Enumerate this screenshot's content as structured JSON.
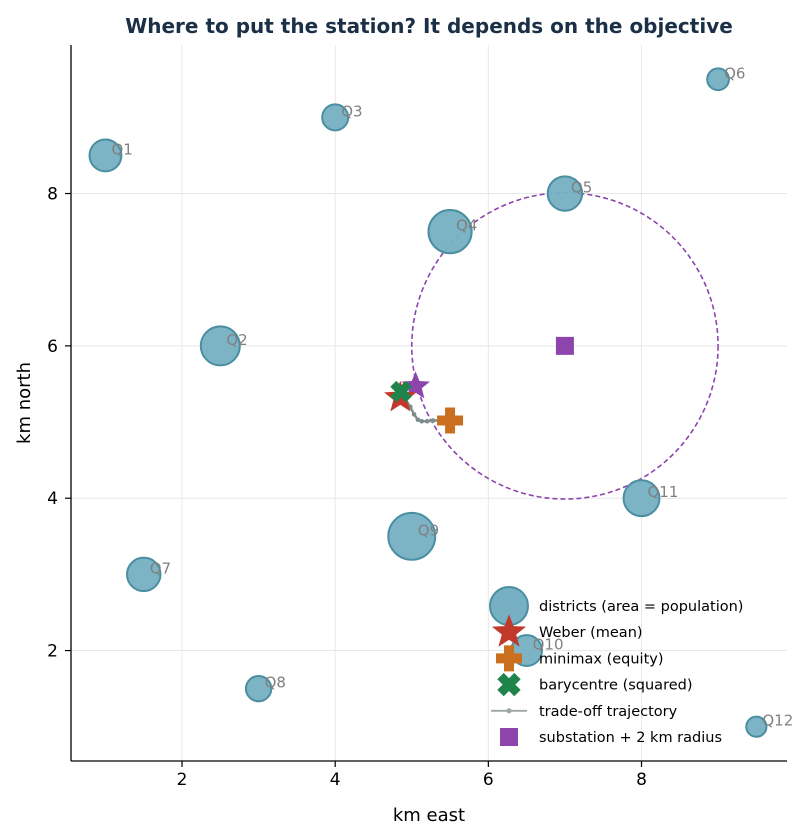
{
  "chart_data": {
    "type": "scatter",
    "title": "Where to put the station? It depends on the objective",
    "xlabel": "km east",
    "ylabel": "km north",
    "xlim": [
      0.55,
      9.9
    ],
    "ylim": [
      0.55,
      9.95
    ],
    "xticks": [
      2,
      4,
      6,
      8
    ],
    "yticks": [
      2,
      4,
      6,
      8
    ],
    "grid": true,
    "legend_position": "lower-right",
    "colors": {
      "district": "#76b0c2",
      "district_edge": "#4a8ea2",
      "weber": "#c0392b",
      "minimax": "#ca6f1e",
      "barycentre": "#1e8449",
      "trajectory": "#7f8c8d",
      "substation": "#8e44ad",
      "title": "#1b3046"
    },
    "districts": [
      {
        "label": "Q1",
        "x": 1.0,
        "y": 8.5,
        "population": 3.0
      },
      {
        "label": "Q2",
        "x": 2.5,
        "y": 6.0,
        "population": 4.5
      },
      {
        "label": "Q3",
        "x": 4.0,
        "y": 9.0,
        "population": 2.0
      },
      {
        "label": "Q4",
        "x": 5.5,
        "y": 7.5,
        "population": 5.5
      },
      {
        "label": "Q5",
        "x": 7.0,
        "y": 8.0,
        "population": 3.5
      },
      {
        "label": "Q6",
        "x": 9.0,
        "y": 9.5,
        "population": 1.4
      },
      {
        "label": "Q7",
        "x": 1.5,
        "y": 3.0,
        "population": 3.3
      },
      {
        "label": "Q8",
        "x": 3.0,
        "y": 1.5,
        "population": 1.9
      },
      {
        "label": "Q9",
        "x": 5.0,
        "y": 3.5,
        "population": 6.5
      },
      {
        "label": "Q10",
        "x": 6.5,
        "y": 2.0,
        "population": 2.8
      },
      {
        "label": "Q11",
        "x": 8.0,
        "y": 4.0,
        "population": 3.8
      },
      {
        "label": "Q12",
        "x": 9.5,
        "y": 1.0,
        "population": 1.2
      }
    ],
    "weber": {
      "x": 4.85,
      "y": 5.32
    },
    "weber_alt": {
      "x": 5.05,
      "y": 5.47
    },
    "minimax": {
      "x": 5.5,
      "y": 5.02
    },
    "barycentre": {
      "x": 4.86,
      "y": 5.4
    },
    "trajectory": {
      "x": [
        4.86,
        4.92,
        4.98,
        5.03,
        5.08,
        5.13,
        5.2,
        5.28,
        5.37,
        5.5
      ],
      "y": [
        5.4,
        5.3,
        5.2,
        5.1,
        5.03,
        5.01,
        5.01,
        5.02,
        5.02,
        5.02
      ]
    },
    "substation": {
      "x": 7.0,
      "y": 6.0,
      "radius_km": 2
    },
    "legend": [
      {
        "key": "districts",
        "label": "districts (area = population)"
      },
      {
        "key": "weber",
        "label": "Weber (mean)"
      },
      {
        "key": "minimax",
        "label": "minimax (equity)"
      },
      {
        "key": "barycentre",
        "label": "barycentre (squared)"
      },
      {
        "key": "trajectory",
        "label": "trade-off trajectory"
      },
      {
        "key": "substation",
        "label": "substation + 2 km radius"
      }
    ]
  }
}
